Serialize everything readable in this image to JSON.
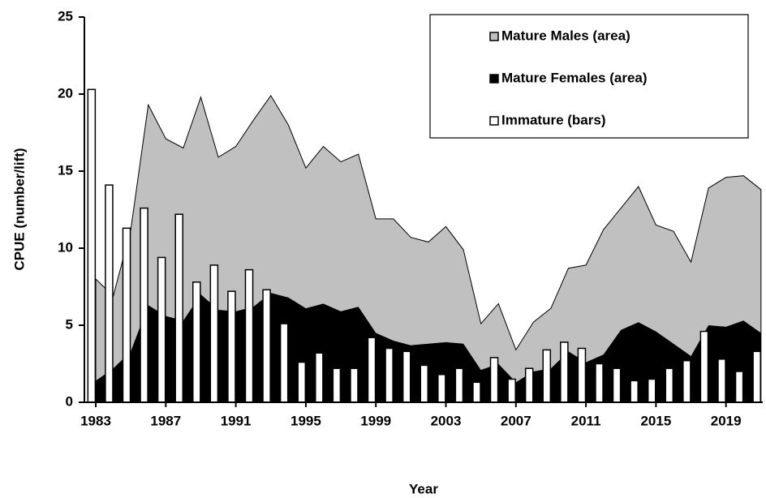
{
  "chart_data": {
    "type": "area",
    "y_label": "CPUE (number/lift)",
    "x_label": "Year",
    "x": [
      1983,
      1984,
      1985,
      1986,
      1987,
      1988,
      1989,
      1990,
      1991,
      1992,
      1993,
      1994,
      1995,
      1996,
      1997,
      1998,
      1999,
      2000,
      2001,
      2002,
      2003,
      2004,
      2005,
      2006,
      2007,
      2008,
      2009,
      2010,
      2011,
      2012,
      2013,
      2014,
      2015,
      2016,
      2017,
      2018,
      2019,
      2020,
      2021
    ],
    "xlim": [
      1982.35,
      2021.1
    ],
    "xticks": [
      1983,
      1987,
      1991,
      1995,
      1999,
      2003,
      2007,
      2011,
      2015,
      2019
    ],
    "ylim": [
      0,
      25
    ],
    "yticks": [
      0,
      5,
      10,
      15,
      20,
      25
    ],
    "legend": "upper right",
    "series": [
      {
        "name": "Mature Males (area)",
        "type": "area",
        "color": "#c0c0c0",
        "values": [
          8.0,
          6.9,
          11.2,
          19.3,
          17.1,
          16.5,
          19.8,
          15.9,
          16.6,
          18.3,
          19.9,
          18.0,
          15.2,
          16.6,
          15.6,
          16.1,
          11.9,
          11.9,
          10.7,
          10.4,
          11.4,
          9.9,
          5.1,
          6.4,
          3.4,
          5.2,
          6.1,
          8.7,
          8.9,
          11.2,
          12.6,
          14.0,
          11.5,
          11.1,
          9.1,
          13.9,
          14.6,
          14.7,
          13.8
        ]
      },
      {
        "name": "Mature Females (area)",
        "type": "area",
        "color": "#000000",
        "values": [
          1.4,
          2.2,
          3.3,
          6.3,
          5.6,
          5.3,
          7.0,
          6.0,
          5.9,
          6.2,
          7.1,
          6.8,
          6.1,
          6.4,
          5.9,
          6.2,
          4.5,
          4.0,
          3.7,
          3.8,
          3.9,
          3.8,
          2.1,
          2.5,
          1.3,
          2.0,
          2.2,
          3.3,
          2.6,
          3.1,
          4.7,
          5.2,
          4.6,
          3.8,
          3.0,
          5.0,
          4.9,
          5.3,
          4.5
        ]
      },
      {
        "name": "Immature (bars)",
        "type": "bar",
        "color": "#ffffff",
        "values": [
          20.3,
          14.1,
          11.3,
          12.6,
          9.4,
          12.2,
          7.8,
          8.9,
          7.2,
          8.6,
          7.3,
          5.1,
          2.6,
          3.2,
          2.2,
          2.2,
          4.2,
          3.5,
          3.3,
          2.4,
          1.8,
          2.2,
          1.3,
          2.9,
          1.5,
          2.2,
          3.4,
          3.9,
          3.5,
          2.5,
          2.2,
          1.4,
          1.5,
          2.2,
          2.7,
          4.6,
          2.8,
          2.0,
          3.3
        ]
      }
    ]
  }
}
